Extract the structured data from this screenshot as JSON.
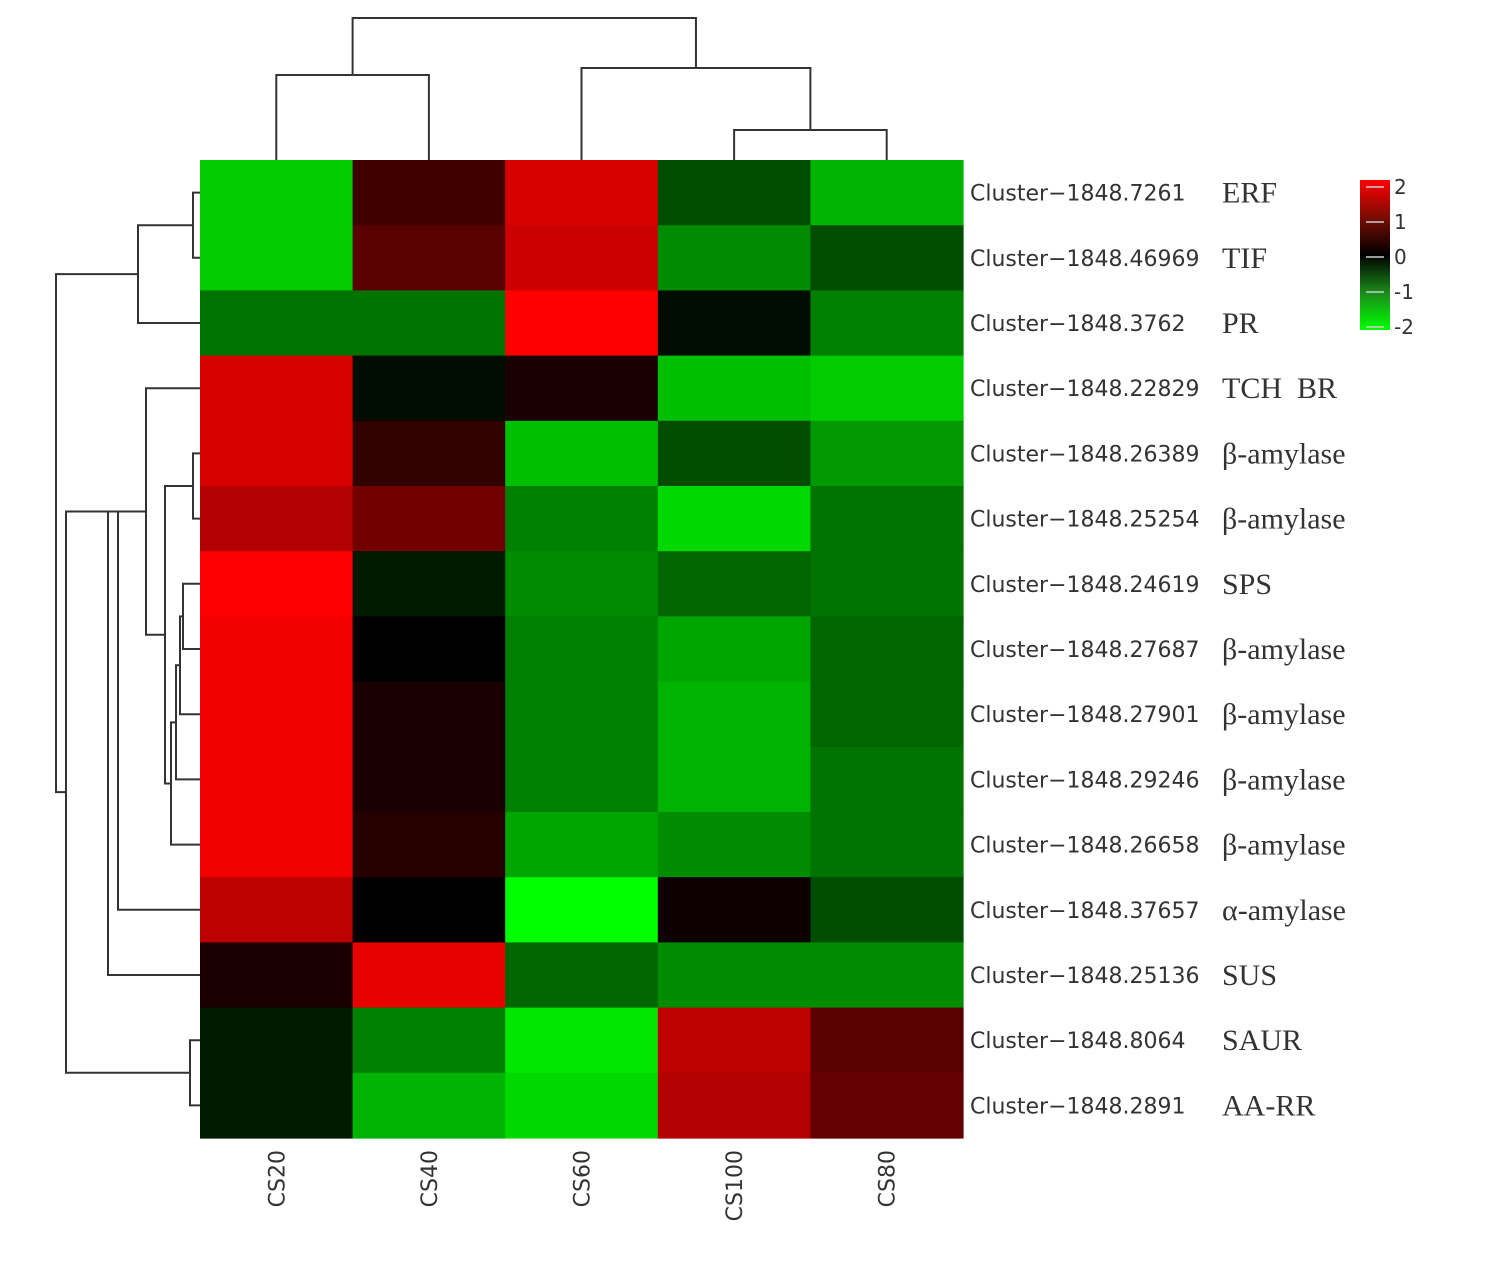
{
  "chart_data": {
    "type": "heatmap",
    "columns": [
      "CS20",
      "CS40",
      "CS60",
      "CS100",
      "CS80"
    ],
    "rows": [
      {
        "id": "Cluster−1848.7261",
        "gene": "ERF",
        "values": [
          -1.6,
          0.5,
          1.7,
          -0.6,
          -1.4
        ]
      },
      {
        "id": "Cluster−1848.46969",
        "gene": "TIF",
        "values": [
          -1.6,
          0.7,
          1.6,
          -1.1,
          -0.6
        ]
      },
      {
        "id": "Cluster−1848.3762",
        "gene": "PR",
        "values": [
          -0.9,
          -0.9,
          2.0,
          -0.1,
          -1.0
        ]
      },
      {
        "id": "Cluster−1848.22829",
        "gene": "TCH  BR",
        "values": [
          1.7,
          -0.1,
          0.2,
          -1.5,
          -1.6
        ]
      },
      {
        "id": "Cluster−1848.26389",
        "gene": "β-amylase",
        "values": [
          1.7,
          0.4,
          -1.5,
          -0.6,
          -1.2
        ]
      },
      {
        "id": "Cluster−1848.25254",
        "gene": "β-amylase",
        "values": [
          1.4,
          0.9,
          -1.0,
          -1.7,
          -0.9
        ]
      },
      {
        "id": "Cluster−1848.24619",
        "gene": "SPS",
        "values": [
          2.0,
          -0.2,
          -1.1,
          -0.8,
          -0.9
        ]
      },
      {
        "id": "Cluster−1848.27687",
        "gene": "β-amylase",
        "values": [
          1.9,
          0.0,
          -1.0,
          -1.3,
          -0.8
        ]
      },
      {
        "id": "Cluster−1848.27901",
        "gene": "β-amylase",
        "values": [
          1.9,
          0.2,
          -1.0,
          -1.4,
          -0.8
        ]
      },
      {
        "id": "Cluster−1848.29246",
        "gene": "β-amylase",
        "values": [
          1.9,
          0.2,
          -1.0,
          -1.4,
          -0.9
        ]
      },
      {
        "id": "Cluster−1848.26658",
        "gene": "β-amylase",
        "values": [
          1.9,
          0.3,
          -1.3,
          -1.1,
          -0.9
        ]
      },
      {
        "id": "Cluster−1848.37657",
        "gene": "α-amylase",
        "values": [
          1.5,
          0.0,
          -2.0,
          0.1,
          -0.6
        ]
      },
      {
        "id": "Cluster−1848.25136",
        "gene": "SUS",
        "values": [
          0.2,
          1.8,
          -0.8,
          -1.1,
          -1.1
        ]
      },
      {
        "id": "Cluster−1848.8064",
        "gene": "SAUR",
        "values": [
          -0.2,
          -1.0,
          -1.8,
          1.5,
          0.7
        ]
      },
      {
        "id": "Cluster−1848.2891",
        "gene": "AA-RR",
        "values": [
          -0.2,
          -1.4,
          -1.7,
          1.4,
          0.8
        ]
      }
    ],
    "color_scale": {
      "min": -2,
      "max": 2,
      "low_color": "#00ff00",
      "mid_color": "#000000",
      "high_color": "#ff0000",
      "ticks": [
        "2",
        "1",
        "0",
        "-1",
        "-2"
      ]
    },
    "column_dendrogram": {
      "merges": [
        [
          3,
          4
        ],
        [
          2,
          3
        ],
        [
          0,
          1
        ],
        [
          0,
          2
        ]
      ]
    },
    "row_dendrogram": {
      "merges": [
        [
          0,
          1
        ],
        [
          0,
          2
        ],
        [
          4,
          5
        ],
        [
          6,
          7
        ],
        [
          6,
          8
        ],
        [
          6,
          9
        ],
        [
          6,
          10
        ],
        [
          6,
          4
        ],
        [
          3,
          6
        ],
        [
          11,
          3
        ],
        [
          12,
          3
        ],
        [
          13,
          14
        ],
        [
          3,
          13
        ],
        [
          0,
          3
        ]
      ]
    }
  }
}
